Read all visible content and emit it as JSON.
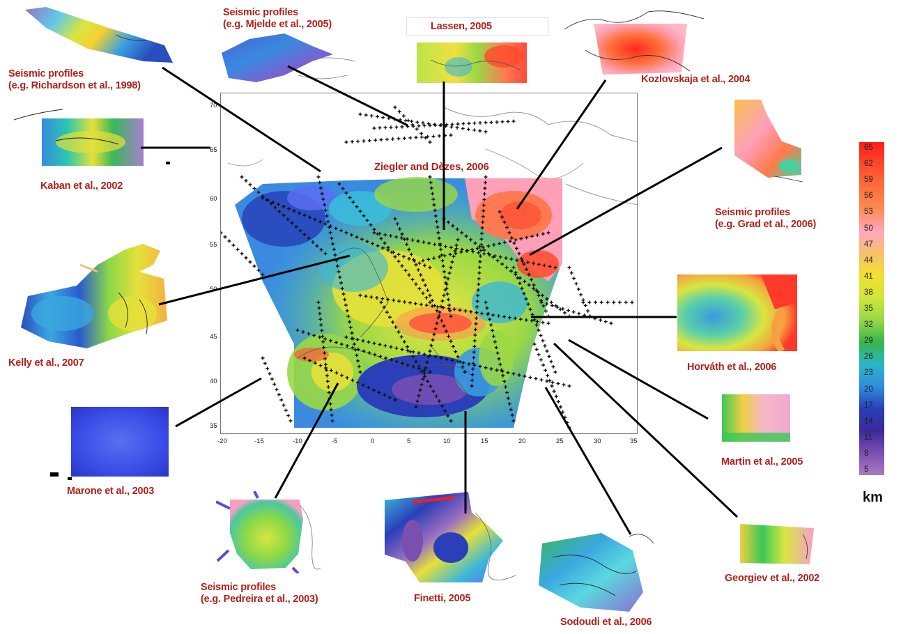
{
  "main_map": {
    "title": "Ziegler and Dèzes, 2006",
    "x_ticks": [
      "-20",
      "-15",
      "-10",
      "-5",
      "0",
      "5",
      "10",
      "15",
      "20",
      "25",
      "30",
      "35"
    ],
    "y_ticks": [
      "35",
      "40",
      "45",
      "50",
      "55",
      "60",
      "65",
      "70"
    ]
  },
  "legend": {
    "unit": "km",
    "ticks": [
      "65",
      "62",
      "59",
      "56",
      "53",
      "50",
      "47",
      "44",
      "41",
      "38",
      "35",
      "32",
      "29",
      "26",
      "23",
      "20",
      "17",
      "14",
      "11",
      "8",
      "5"
    ],
    "colors": [
      "#ff1a1a",
      "#ff4a2a",
      "#ff6e3a",
      "#ff8a52",
      "#ffa6c0",
      "#f7c06a",
      "#f2e030",
      "#cfe63a",
      "#9ad845",
      "#39b54a",
      "#29b6c8",
      "#2f8fdc",
      "#2a3fb8",
      "#3a2a9a",
      "#7b4fb0",
      "#a77bc0"
    ]
  },
  "insets": [
    {
      "id": "richardson",
      "label": [
        "Seismic profiles",
        "(e.g. Richardson et al., 1998)"
      ]
    },
    {
      "id": "mjelde",
      "label": [
        "Seismic profiles",
        "(e.g. Mjelde et al., 2005)"
      ]
    },
    {
      "id": "lassen",
      "label": [
        "Lassen, 2005"
      ]
    },
    {
      "id": "kozlovskaja",
      "label": [
        "Kozlovskaja et al., 2004"
      ]
    },
    {
      "id": "kaban",
      "label": [
        "Kaban et al., 2002"
      ]
    },
    {
      "id": "grad",
      "label": [
        "Seismic profiles",
        "(e.g. Grad et al., 2006)"
      ]
    },
    {
      "id": "kelly",
      "label": [
        "Kelly et al., 2007"
      ]
    },
    {
      "id": "horvath",
      "label": [
        "Horváth et al., 2006"
      ]
    },
    {
      "id": "marone",
      "label": [
        "Marone et al., 2003"
      ]
    },
    {
      "id": "martin",
      "label": [
        "Martin et al., 2005"
      ]
    },
    {
      "id": "pedreira",
      "label": [
        "Seismic profiles",
        "(e.g. Pedreira et al., 2003)"
      ]
    },
    {
      "id": "finetti",
      "label": [
        "Finetti,  2005"
      ]
    },
    {
      "id": "sodoudi",
      "label": [
        "Sodoudi et al., 2006"
      ]
    },
    {
      "id": "georgiev",
      "label": [
        "Georgiev et al., 2002"
      ]
    }
  ]
}
